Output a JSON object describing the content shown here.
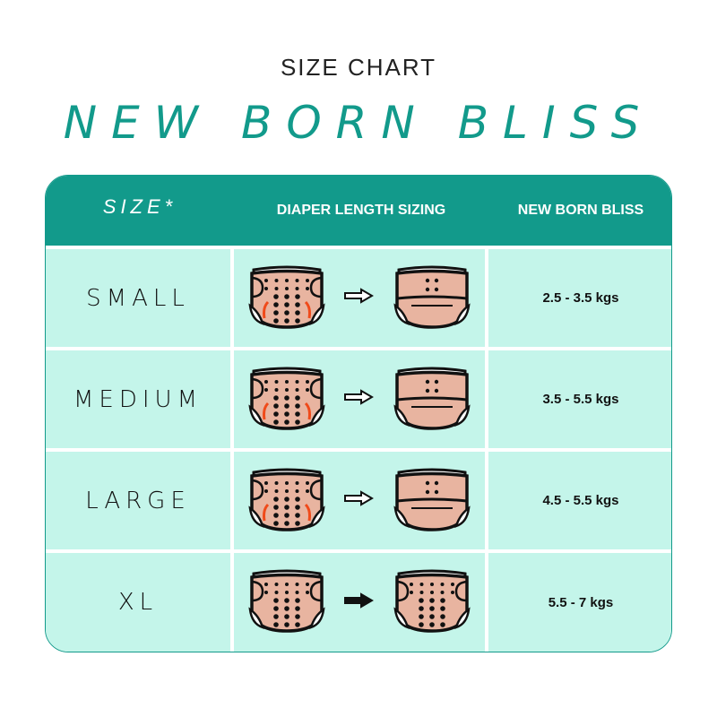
{
  "subtitle": "SIZE CHART",
  "title": "NEW BORN BLISS",
  "colors": {
    "header": "#129a8b",
    "cell": "#c4f5ea",
    "diaper": "#e8b4a0",
    "arrow": "#f04a1a"
  },
  "headers": [
    "SIZE*",
    "DIAPER LENGTH SIZING",
    "NEW BORN BLISS"
  ],
  "rows": [
    {
      "size": "SMALL",
      "weight": "2.5 - 3.5 kgs",
      "icon": "diaper-small-icon"
    },
    {
      "size": "MEDIUM",
      "weight": "3.5 - 5.5 kgs",
      "icon": "diaper-medium-icon"
    },
    {
      "size": "LARGE",
      "weight": "4.5 - 5.5 kgs",
      "icon": "diaper-large-icon"
    },
    {
      "size": "XL",
      "weight": "5.5 - 7 kgs",
      "icon": "diaper-xl-icon"
    }
  ]
}
